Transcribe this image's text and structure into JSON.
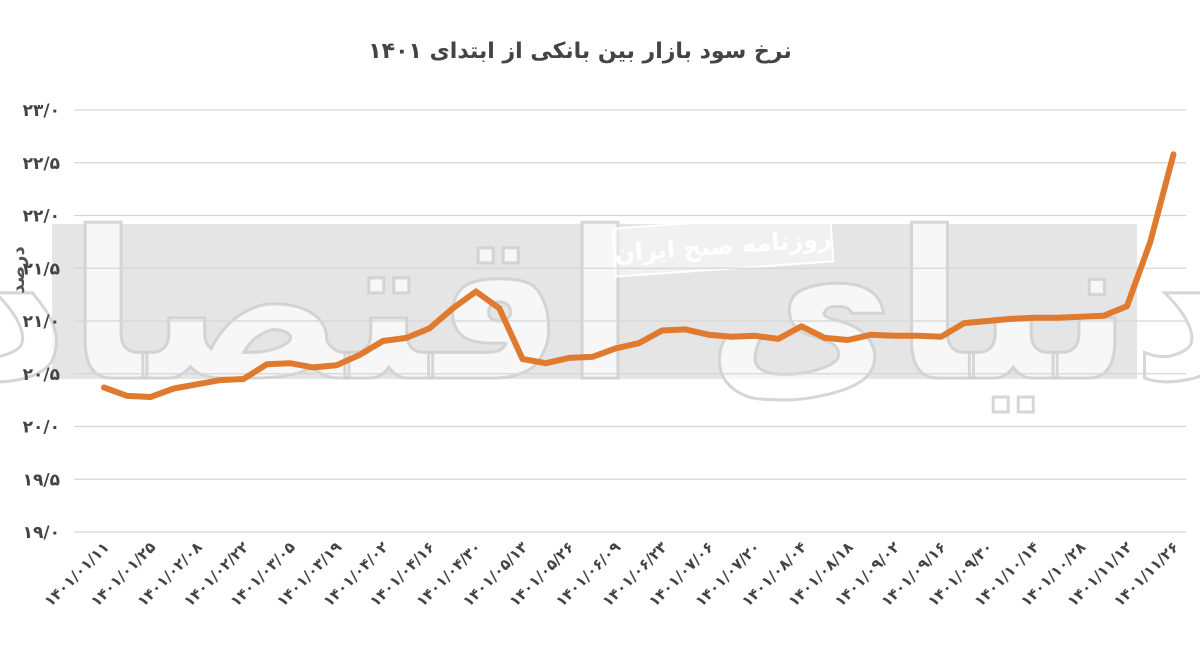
{
  "chart_data": {
    "type": "line",
    "title": "نرخ سود بازار بین بانکی از ابتدای ۱۴۰۱",
    "ylabel": "درصد",
    "xlabel": "",
    "ylim": [
      19.0,
      23.0
    ],
    "y_ticks": [
      19.0,
      19.5,
      20.0,
      20.5,
      21.0,
      21.5,
      22.0,
      22.5,
      23.0
    ],
    "y_tick_labels": [
      "۱۹/۰",
      "۱۹/۵",
      "۲۰/۰",
      "۲۰/۵",
      "۲۱/۰",
      "۲۱/۵",
      "۲۲/۰",
      "۲۲/۵",
      "۲۳/۰"
    ],
    "x_tick_labels": [
      "۱۴۰۱/۰۱/۱۱",
      "۱۴۰۱/۰۱/۲۵",
      "۱۴۰۱/۰۲/۰۸",
      "۱۴۰۱/۰۲/۲۲",
      "۱۴۰۱/۰۳/۰۵",
      "۱۴۰۱/۰۳/۱۹",
      "۱۴۰۱/۰۴/۰۲",
      "۱۴۰۱/۰۴/۱۶",
      "۱۴۰۱/۰۴/۳۰",
      "۱۴۰۱/۰۵/۱۳",
      "۱۴۰۱/۰۵/۲۶",
      "۱۴۰۱/۰۶/۰۹",
      "۱۴۰۱/۰۶/۲۳",
      "۱۴۰۱/۰۷/۰۶",
      "۱۴۰۱/۰۷/۲۰",
      "۱۴۰۱/۰۸/۰۴",
      "۱۴۰۱/۰۸/۱۸",
      "۱۴۰۱/۰۹/۰۲",
      "۱۴۰۱/۰۹/۱۶",
      "۱۴۰۱/۰۹/۳۰",
      "۱۴۰۱/۱۰/۱۴",
      "۱۴۰۱/۱۰/۲۸",
      "۱۴۰۱/۱۱/۱۲",
      "۱۴۰۱/۱۱/۲۶"
    ],
    "x_tick_every": 2,
    "grid": true,
    "series": [
      {
        "values": [
          20.37,
          20.29,
          20.28,
          20.36,
          20.4,
          20.44,
          20.45,
          20.59,
          20.6,
          20.56,
          20.58,
          20.68,
          20.81,
          20.84,
          20.93,
          21.12,
          21.28,
          21.12,
          20.64,
          20.6,
          20.65,
          20.66,
          20.74,
          20.79,
          20.91,
          20.92,
          20.87,
          20.85,
          20.86,
          20.83,
          20.95,
          20.84,
          20.82,
          20.87,
          20.86,
          20.86,
          20.85,
          20.98,
          21.0,
          21.02,
          21.03,
          21.03,
          21.04,
          21.05,
          21.14,
          21.75,
          22.58
        ],
        "color": "#e07a2e"
      }
    ]
  },
  "watermark": {
    "logo_text": "دنیای اقتصاد",
    "stamp_text": "روزنامه صبح ایران"
  },
  "colors": {
    "line": "#e07a2e",
    "grid": "#d6d6d6",
    "text": "#444444",
    "watermark_band": "#dcdcdc"
  }
}
